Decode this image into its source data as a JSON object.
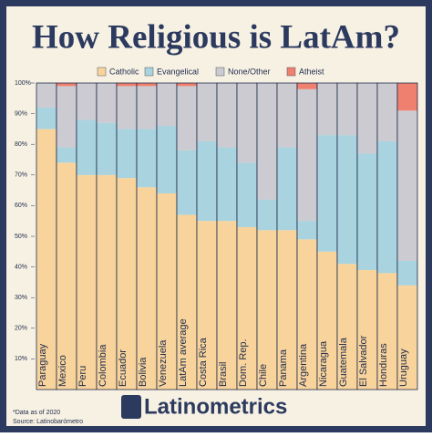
{
  "chart_data": {
    "type": "stacked-bar-100",
    "title": "How Religious is LatAm?",
    "categories": [
      "Paraguay",
      "Mexico",
      "Peru",
      "Colombia",
      "Ecuador",
      "Bolivia",
      "Venezuela",
      "LatAm average",
      "Costa Rica",
      "Brasil",
      "Dom. Rep.",
      "Chile",
      "Panama",
      "Argentina",
      "Nicaragua",
      "Guatemala",
      "El Salvador",
      "Honduras",
      "Uruguay"
    ],
    "series": [
      {
        "name": "Catholic",
        "color": "#f8d49c",
        "values": [
          85,
          74,
          70,
          70,
          69,
          66,
          64,
          57,
          55,
          55,
          53,
          52,
          52,
          49,
          45,
          41,
          39,
          38,
          34
        ]
      },
      {
        "name": "Evangelical",
        "color": "#a8d3df",
        "values": [
          7,
          5,
          18,
          17,
          16,
          19,
          22,
          21,
          26,
          24,
          21,
          10,
          27,
          6,
          38,
          42,
          38,
          43,
          8
        ]
      },
      {
        "name": "None/Other",
        "color": "#cbcbd1",
        "values": [
          8,
          20,
          12,
          13,
          14,
          14,
          14,
          21,
          19,
          21,
          26,
          38,
          21,
          43,
          17,
          17,
          23,
          19,
          49
        ]
      },
      {
        "name": "Atheist",
        "color": "#ef8070",
        "values": [
          0,
          1,
          0,
          0,
          1,
          1,
          0,
          1,
          0,
          0,
          0,
          0,
          0,
          2,
          0,
          0,
          0,
          0,
          9
        ]
      }
    ],
    "ylim": [
      0,
      100
    ],
    "yticks": [
      {
        "value": 10,
        "label": "10%"
      },
      {
        "value": 20,
        "label": "20%"
      },
      {
        "value": 30,
        "label": "30%"
      },
      {
        "value": 40,
        "label": "40%"
      },
      {
        "value": 50,
        "label": "50%"
      },
      {
        "value": 60,
        "label": "60%"
      },
      {
        "value": 70,
        "label": "70%"
      },
      {
        "value": 80,
        "label": "80%"
      },
      {
        "value": 90,
        "label": "90%"
      },
      {
        "value": 100,
        "label": "100%"
      }
    ],
    "legend": "top"
  },
  "footer": {
    "note": "*Data as of 2020",
    "source": "Source: Latinobarómetro",
    "brand": "Latinometrics"
  }
}
